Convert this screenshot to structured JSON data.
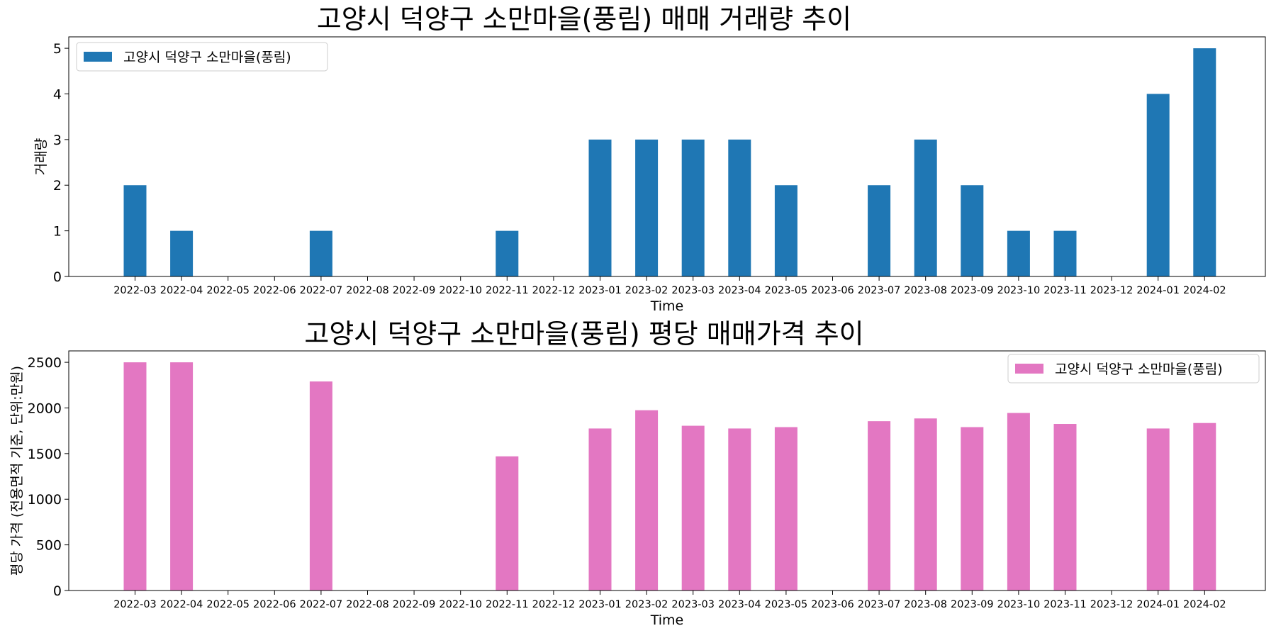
{
  "chart_data": [
    {
      "type": "bar",
      "title": "고양시 덕양구 소만마을(풍림) 매매 거래량 추이",
      "xlabel": "Time",
      "ylabel": "거래량",
      "categories": [
        "2022-03",
        "2022-04",
        "2022-05",
        "2022-06",
        "2022-07",
        "2022-08",
        "2022-09",
        "2022-10",
        "2022-11",
        "2022-12",
        "2023-01",
        "2023-02",
        "2023-03",
        "2023-04",
        "2023-05",
        "2023-06",
        "2023-07",
        "2023-08",
        "2023-09",
        "2023-10",
        "2023-11",
        "2023-12",
        "2024-01",
        "2024-02"
      ],
      "series": [
        {
          "name": "고양시 덕양구 소만마을(풍림)",
          "color": "#1f77b4",
          "values": [
            2,
            1,
            0,
            0,
            1,
            0,
            0,
            0,
            1,
            0,
            3,
            3,
            3,
            3,
            2,
            0,
            2,
            3,
            2,
            1,
            1,
            0,
            4,
            5
          ]
        }
      ],
      "ylim": [
        0,
        5.25
      ],
      "yticks": [
        0,
        1,
        2,
        3,
        4,
        5
      ],
      "grid": false,
      "legend": "upper left"
    },
    {
      "type": "bar",
      "title": "고양시 덕양구 소만마을(풍림) 평당 매매가격 추이",
      "xlabel": "Time",
      "ylabel": "평당 가격 (전용면적 기준, 단위:만원)",
      "categories": [
        "2022-03",
        "2022-04",
        "2022-05",
        "2022-06",
        "2022-07",
        "2022-08",
        "2022-09",
        "2022-10",
        "2022-11",
        "2022-12",
        "2023-01",
        "2023-02",
        "2023-03",
        "2023-04",
        "2023-05",
        "2023-06",
        "2023-07",
        "2023-08",
        "2023-09",
        "2023-10",
        "2023-11",
        "2023-12",
        "2024-01",
        "2024-02"
      ],
      "series": [
        {
          "name": "고양시 덕양구 소만마을(풍림)",
          "color": "#e377c2",
          "values": [
            2500,
            2500,
            0,
            0,
            2290,
            0,
            0,
            0,
            1470,
            0,
            1775,
            1975,
            1805,
            1775,
            1790,
            0,
            1855,
            1885,
            1790,
            1945,
            1825,
            0,
            1775,
            1835
          ]
        }
      ],
      "ylim": [
        0,
        2625
      ],
      "yticks": [
        0,
        500,
        1000,
        1500,
        2000,
        2500
      ],
      "grid": false,
      "legend": "upper right"
    }
  ]
}
